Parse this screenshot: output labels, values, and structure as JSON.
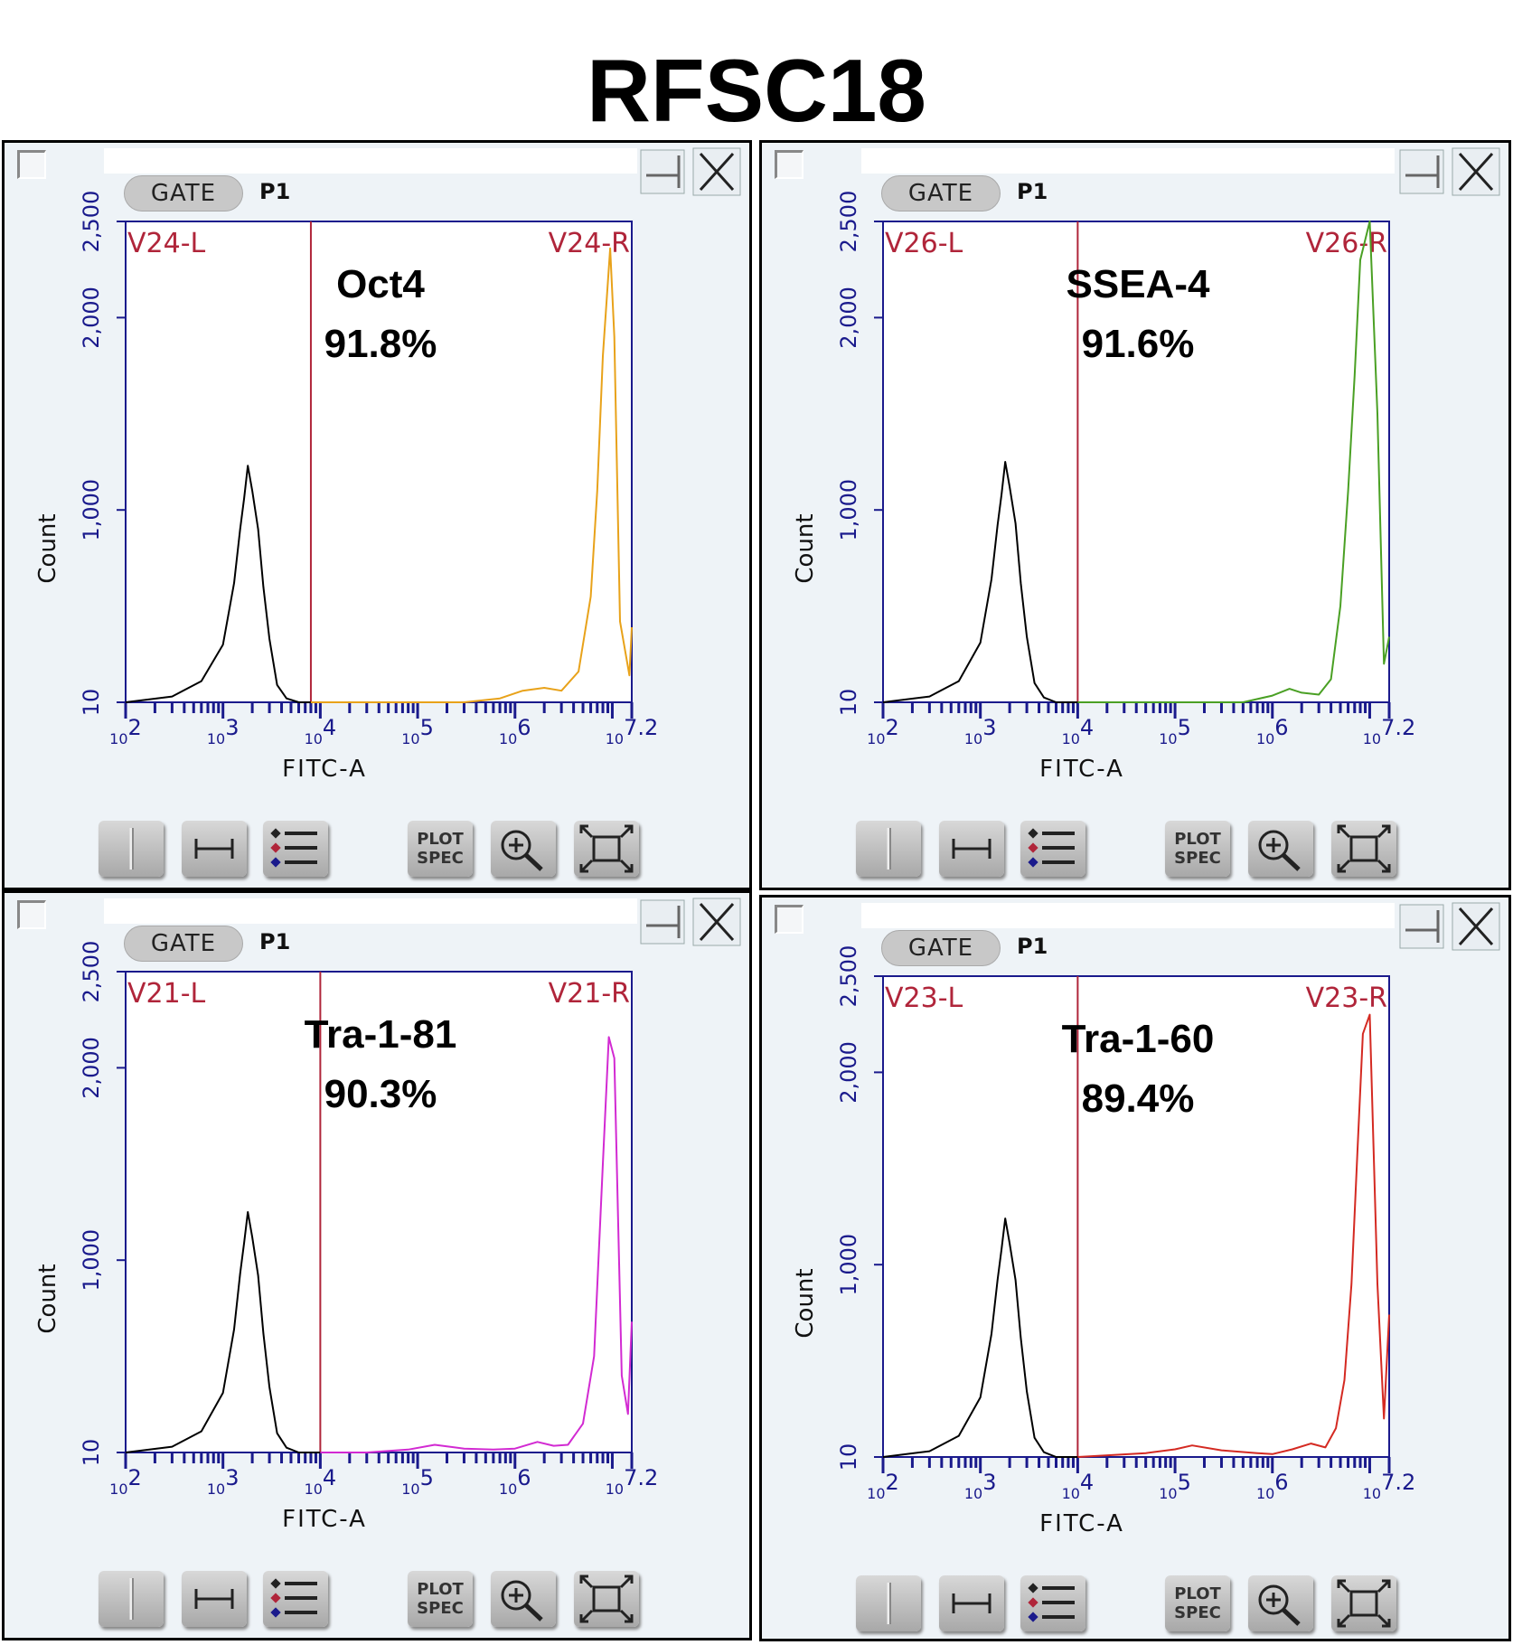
{
  "title": "RFSC18",
  "colors": {
    "axis": "#1a1a8c",
    "gate_marker": "#b0253a",
    "negative_control": "#000000"
  },
  "toolbar": {
    "plot_spec_line1": "PLOT",
    "plot_spec_line2": "SPEC",
    "icons": [
      "split-view-icon",
      "range-gate-icon",
      "legend-list-icon",
      "plot-spec-button",
      "zoom-in-icon",
      "fit-to-window-icon"
    ]
  },
  "panels": [
    {
      "id": "oct4",
      "gate_label": "GATE",
      "gate_value": "P1",
      "marker_label": "Oct4",
      "percent_label": "91.8%",
      "region_left": "V24-L",
      "region_right": "V24-R",
      "series_color": "#e8a21a",
      "xlabel": "FITC-A",
      "ylabel": "Count"
    },
    {
      "id": "ssea4",
      "gate_label": "GATE",
      "gate_value": "P1",
      "marker_label": "SSEA-4",
      "percent_label": "91.6%",
      "region_left": "V26-L",
      "region_right": "V26-R",
      "series_color": "#4aa024",
      "xlabel": "FITC-A",
      "ylabel": "Count"
    },
    {
      "id": "tra181",
      "gate_label": "GATE",
      "gate_value": "P1",
      "marker_label": "Tra-1-81",
      "percent_label": "90.3%",
      "region_left": "V21-L",
      "region_right": "V21-R",
      "series_color": "#d22ad2",
      "xlabel": "FITC-A",
      "ylabel": "Count"
    },
    {
      "id": "tra160",
      "gate_label": "GATE",
      "gate_value": "P1",
      "marker_label": "Tra-1-60",
      "percent_label": "89.4%",
      "region_left": "V23-L",
      "region_right": "V23-R",
      "series_color": "#d42a22",
      "xlabel": "FITC-A",
      "ylabel": "Count"
    }
  ],
  "chart_data": [
    {
      "type": "line",
      "title": "Oct4 91.8%",
      "xlabel": "FITC-A",
      "ylabel": "Count",
      "x_scale": "log",
      "xlim": [
        100,
        15848932
      ],
      "x_tick_labels": [
        "10^2",
        "10^3",
        "10^4",
        "10^5",
        "10^6",
        "10^7.2"
      ],
      "y_ticks": [
        10,
        1000,
        2000,
        2500
      ],
      "y_tick_labels": [
        "10",
        "1,000",
        "2,000",
        "2,500"
      ],
      "gate_divider_x": 8000,
      "regions": [
        "V24-L",
        "V24-R"
      ],
      "series": [
        {
          "role": "control",
          "color": "#000000",
          "x": [
            100,
            300,
            600,
            1000,
            1300,
            1500,
            1650,
            1800,
            2000,
            2300,
            2600,
            3000,
            3600,
            4500,
            6000,
            8000
          ],
          "y": [
            0,
            30,
            110,
            300,
            620,
            900,
            1060,
            1230,
            1100,
            900,
            600,
            330,
            90,
            20,
            4,
            0
          ]
        },
        {
          "role": "stained",
          "color": "#e8a21a",
          "x": [
            8000,
            30000,
            100000,
            300000,
            700000,
            1200000,
            2000000,
            3000000,
            4500000,
            6000000,
            7000000,
            8000000,
            9500000,
            10500000,
            12000000,
            15000000,
            15848932
          ],
          "y": [
            0,
            2,
            5,
            8,
            20,
            60,
            75,
            60,
            160,
            550,
            1100,
            1800,
            2360,
            1900,
            420,
            140,
            390
          ]
        }
      ]
    },
    {
      "type": "line",
      "title": "SSEA-4 91.6%",
      "xlabel": "FITC-A",
      "ylabel": "Count",
      "x_scale": "log",
      "xlim": [
        100,
        15848932
      ],
      "x_tick_labels": [
        "10^2",
        "10^3",
        "10^4",
        "10^5",
        "10^6",
        "10^7.2"
      ],
      "y_ticks": [
        10,
        1000,
        2000,
        2500
      ],
      "y_tick_labels": [
        "10",
        "1,000",
        "2,000",
        "2,500"
      ],
      "gate_divider_x": 10000,
      "regions": [
        "V26-L",
        "V26-R"
      ],
      "series": [
        {
          "role": "control",
          "color": "#000000",
          "x": [
            100,
            300,
            600,
            1000,
            1300,
            1500,
            1650,
            1800,
            2000,
            2300,
            2600,
            3000,
            3600,
            4500,
            6000,
            9000,
            10000
          ],
          "y": [
            0,
            30,
            110,
            310,
            640,
            920,
            1080,
            1250,
            1120,
            930,
            620,
            340,
            100,
            25,
            5,
            0,
            0
          ]
        },
        {
          "role": "stained",
          "color": "#4aa024",
          "x": [
            10000,
            100000,
            500000,
            1000000,
            1500000,
            2000000,
            3000000,
            4000000,
            5000000,
            6000000,
            7000000,
            8000000,
            10000000,
            12000000,
            14000000,
            15848932
          ],
          "y": [
            0,
            2,
            10,
            35,
            70,
            50,
            40,
            120,
            500,
            1100,
            1700,
            2300,
            2500,
            1500,
            200,
            340
          ]
        }
      ]
    },
    {
      "type": "line",
      "title": "Tra-1-81 90.3%",
      "xlabel": "FITC-A",
      "ylabel": "Count",
      "x_scale": "log",
      "xlim": [
        100,
        15848932
      ],
      "x_tick_labels": [
        "10^2",
        "10^3",
        "10^4",
        "10^5",
        "10^6",
        "10^7.2"
      ],
      "y_ticks": [
        10,
        1000,
        2000,
        2500
      ],
      "y_tick_labels": [
        "10",
        "1,000",
        "2,000",
        "2,500"
      ],
      "gate_divider_x": 10000,
      "regions": [
        "V21-L",
        "V21-R"
      ],
      "series": [
        {
          "role": "control",
          "color": "#000000",
          "x": [
            100,
            300,
            600,
            1000,
            1300,
            1500,
            1650,
            1800,
            2000,
            2300,
            2600,
            3000,
            3600,
            4500,
            6000,
            10000
          ],
          "y": [
            0,
            30,
            110,
            310,
            640,
            930,
            1090,
            1250,
            1120,
            920,
            620,
            340,
            100,
            25,
            5,
            0
          ]
        },
        {
          "role": "stained",
          "color": "#d22ad2",
          "x": [
            10000,
            30000,
            80000,
            150000,
            300000,
            600000,
            1000000,
            1700000,
            2500000,
            3500000,
            5000000,
            6500000,
            8000000,
            9200000,
            10500000,
            12500000,
            14500000,
            15848932
          ],
          "y": [
            0,
            10,
            15,
            40,
            20,
            15,
            20,
            55,
            35,
            40,
            150,
            500,
            1500,
            2160,
            2050,
            400,
            200,
            680
          ]
        }
      ]
    },
    {
      "type": "line",
      "title": "Tra-1-60 89.4%",
      "xlabel": "FITC-A",
      "ylabel": "Count",
      "x_scale": "log",
      "xlim": [
        100,
        15848932
      ],
      "x_tick_labels": [
        "10^2",
        "10^3",
        "10^4",
        "10^5",
        "10^6",
        "10^7.2"
      ],
      "y_ticks": [
        10,
        1000,
        2000,
        2500
      ],
      "y_tick_labels": [
        "10",
        "1,000",
        "2,000",
        "2,500"
      ],
      "gate_divider_x": 10000,
      "regions": [
        "V23-L",
        "V23-R"
      ],
      "series": [
        {
          "role": "control",
          "color": "#000000",
          "x": [
            100,
            300,
            600,
            1000,
            1300,
            1500,
            1650,
            1800,
            2000,
            2300,
            2600,
            3000,
            3600,
            4500,
            6000,
            10000
          ],
          "y": [
            0,
            30,
            110,
            310,
            640,
            920,
            1080,
            1240,
            1110,
            920,
            620,
            340,
            100,
            25,
            5,
            0
          ]
        },
        {
          "role": "stained",
          "color": "#d42a22",
          "x": [
            10000,
            50000,
            100000,
            150000,
            300000,
            700000,
            1000000,
            1600000,
            2500000,
            3500000,
            4500000,
            5500000,
            6500000,
            7500000,
            8500000,
            10000000,
            12000000,
            14000000,
            15848932
          ],
          "y": [
            0,
            20,
            40,
            60,
            35,
            20,
            15,
            40,
            70,
            50,
            150,
            400,
            900,
            1600,
            2200,
            2300,
            900,
            200,
            740
          ]
        }
      ]
    }
  ]
}
